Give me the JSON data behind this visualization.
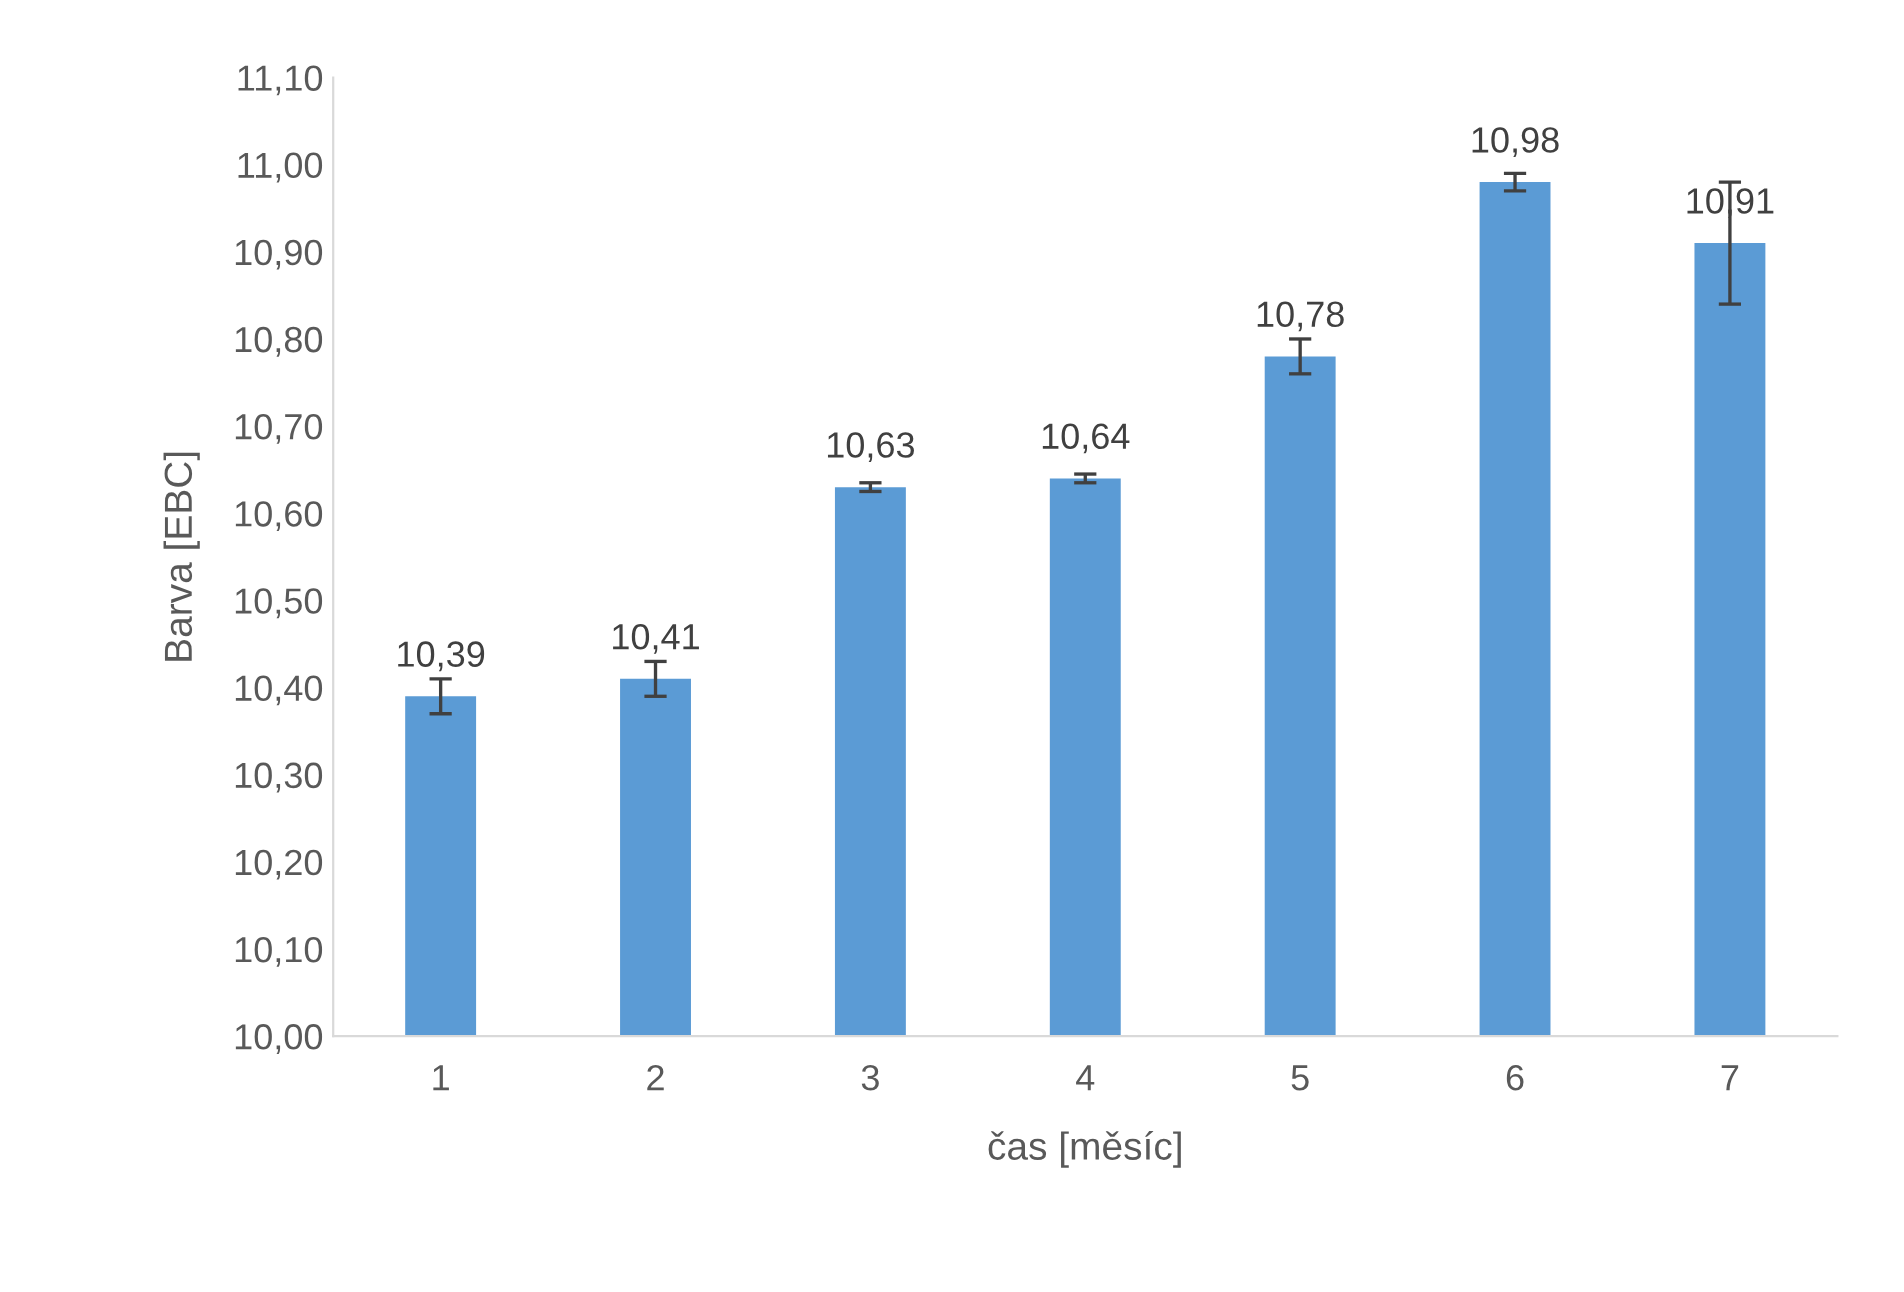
{
  "chart_data": {
    "type": "bar",
    "xlabel": "čas [měsíc]",
    "ylabel": "Barva [EBC]",
    "categories": [
      "1",
      "2",
      "3",
      "4",
      "5",
      "6",
      "7"
    ],
    "values": [
      10.39,
      10.41,
      10.63,
      10.64,
      10.78,
      10.98,
      10.91
    ],
    "errors": [
      0.02,
      0.02,
      0.005,
      0.005,
      0.02,
      0.01,
      0.07
    ],
    "value_labels": [
      "10,39",
      "10,41",
      "10,63",
      "10,64",
      "10,78",
      "10,98",
      "10,91"
    ],
    "color": "#5b9bd5",
    "ylim": [
      10.0,
      11.1
    ],
    "yticks": [
      {
        "value": 10.0,
        "label": "10,00"
      },
      {
        "value": 10.1,
        "label": "10,10"
      },
      {
        "value": 10.2,
        "label": "10,20"
      },
      {
        "value": 10.3,
        "label": "10,30"
      },
      {
        "value": 10.4,
        "label": "10,40"
      },
      {
        "value": 10.5,
        "label": "10,50"
      },
      {
        "value": 10.6,
        "label": "10,60"
      },
      {
        "value": 10.7,
        "label": "10,70"
      },
      {
        "value": 10.8,
        "label": "10,80"
      },
      {
        "value": 10.9,
        "label": "10,90"
      },
      {
        "value": 11.0,
        "label": "11,00"
      },
      {
        "value": 11.1,
        "label": "11,10"
      }
    ],
    "grid": false
  }
}
